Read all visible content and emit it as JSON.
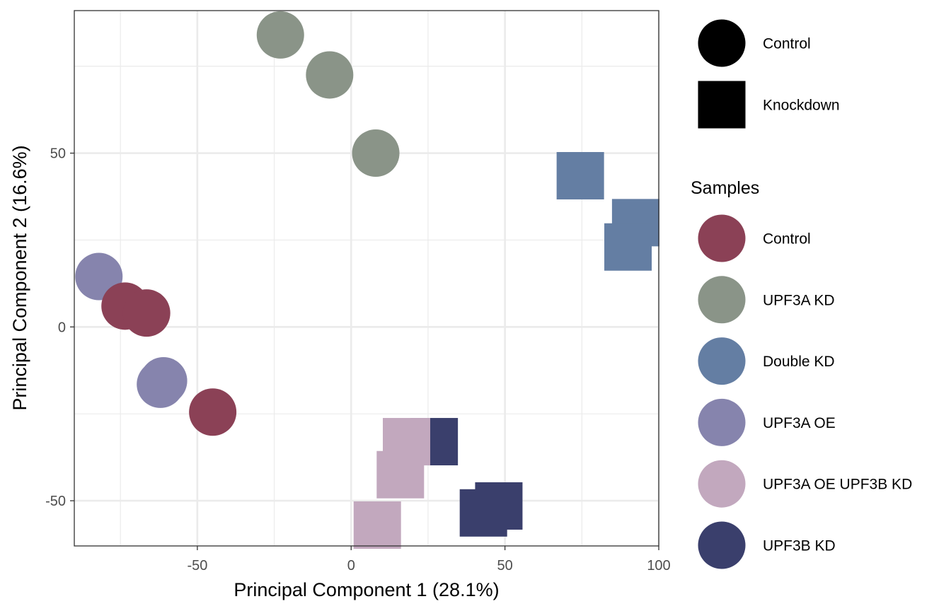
{
  "chart_data": {
    "type": "scatter",
    "xlabel": "Principal Component 1 (28.1%)",
    "ylabel": "Principal Component 2 (16.6%)",
    "xlim": [
      -90,
      100
    ],
    "ylim": [
      -63,
      91
    ],
    "x_ticks": [
      -50,
      0,
      50,
      100
    ],
    "x_tick_labels": [
      "-50",
      "0",
      "50",
      "100"
    ],
    "y_ticks": [
      -50,
      0,
      50
    ],
    "y_tick_labels": [
      "-50",
      "0",
      "50"
    ],
    "grid": true,
    "legend_position": "right",
    "shape_legend": {
      "items": [
        {
          "label": "Control",
          "shape": "circle"
        },
        {
          "label": "Knockdown",
          "shape": "square"
        }
      ]
    },
    "color_legend": {
      "title": "Samples",
      "items": [
        {
          "label": "Control",
          "color": "#8b4156"
        },
        {
          "label": "UPF3A KD",
          "color": "#8a9488"
        },
        {
          "label": "Double KD",
          "color": "#647ea3"
        },
        {
          "label": "UPF3A OE",
          "color": "#8684ad"
        },
        {
          "label": "UPF3A OE UPF3B KD",
          "color": "#c2a8be"
        },
        {
          "label": "UPF3B KD",
          "color": "#3a3f6c"
        }
      ]
    },
    "series": [
      {
        "name": "UPF3A KD",
        "shape": "circle",
        "color": "#8a9488",
        "points": [
          {
            "x": -23,
            "y": 84
          },
          {
            "x": -7,
            "y": 72.5
          },
          {
            "x": 8,
            "y": 50
          }
        ]
      },
      {
        "name": "Double KD",
        "shape": "square",
        "color": "#647ea3",
        "points": [
          {
            "x": 74.5,
            "y": 43.5
          },
          {
            "x": 92.5,
            "y": 30
          },
          {
            "x": 90,
            "y": 23
          }
        ]
      },
      {
        "name": "UPF3A OE",
        "shape": "circle",
        "color": "#8684ad",
        "points": [
          {
            "x": -82,
            "y": 14.5
          },
          {
            "x": -61,
            "y": -15.5
          },
          {
            "x": -62,
            "y": -16.5
          }
        ]
      },
      {
        "name": "Control",
        "shape": "circle",
        "color": "#8b4156",
        "points": [
          {
            "x": -73.5,
            "y": 6
          },
          {
            "x": -66.5,
            "y": 4
          },
          {
            "x": -45,
            "y": -24.5
          }
        ]
      },
      {
        "name": "UPF3B KD",
        "shape": "square",
        "color": "#3a3f6c",
        "points": [
          {
            "x": 27,
            "y": -33
          },
          {
            "x": 48,
            "y": -51.5
          },
          {
            "x": 43,
            "y": -53.5
          }
        ]
      },
      {
        "name": "UPF3A OE UPF3B KD",
        "shape": "square",
        "color": "#c2a8be",
        "points": [
          {
            "x": 18,
            "y": -33
          },
          {
            "x": 16,
            "y": -42.5
          },
          {
            "x": 8.5,
            "y": -57
          }
        ]
      }
    ]
  }
}
